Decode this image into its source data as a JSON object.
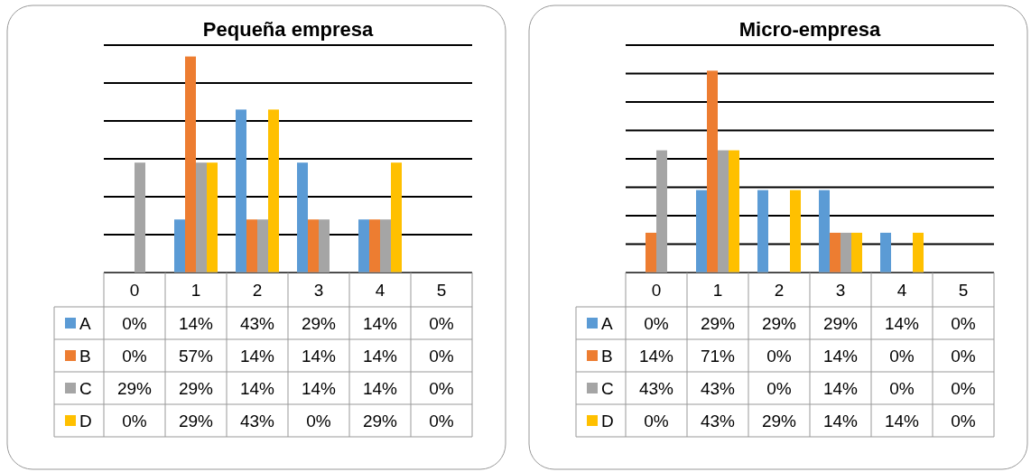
{
  "chart_data": [
    {
      "type": "bar",
      "title": "Pequeña empresa",
      "categories": [
        "0",
        "1",
        "2",
        "3",
        "4",
        "5"
      ],
      "ylim": [
        0,
        60
      ],
      "yticks": [
        {
          "value": 0,
          "label": null
        },
        {
          "value": 10,
          "label": null
        },
        {
          "value": 20,
          "label": null
        },
        {
          "value": 30,
          "label": null
        },
        {
          "value": 40,
          "label": null
        },
        {
          "value": 50,
          "label": null
        },
        {
          "value": 60,
          "label": null
        }
      ],
      "grid": "y",
      "tick_labels": "x",
      "legend": "bottom",
      "series": [
        {
          "name": "A",
          "color": "#5b9bd5",
          "values": [
            0,
            14,
            43,
            29,
            14,
            0
          ],
          "value_labels": [
            "0%",
            "14%",
            "43%",
            "29%",
            "14%",
            "0%"
          ]
        },
        {
          "name": "B",
          "color": "#ed7d31",
          "values": [
            0,
            57,
            14,
            14,
            14,
            0
          ],
          "value_labels": [
            "0%",
            "57%",
            "14%",
            "14%",
            "14%",
            "0%"
          ]
        },
        {
          "name": "C",
          "color": "#a5a5a5",
          "values": [
            29,
            29,
            14,
            14,
            14,
            0
          ],
          "value_labels": [
            "29%",
            "29%",
            "14%",
            "14%",
            "14%",
            "0%"
          ]
        },
        {
          "name": "D",
          "color": "#ffc000",
          "values": [
            0,
            29,
            43,
            0,
            29,
            0
          ],
          "value_labels": [
            "0%",
            "29%",
            "43%",
            "0%",
            "29%",
            "0%"
          ]
        }
      ]
    },
    {
      "type": "bar",
      "title": "Micro-empresa",
      "categories": [
        "0",
        "1",
        "2",
        "3",
        "4",
        "5"
      ],
      "ylim": [
        0,
        80
      ],
      "yticks": [
        {
          "value": 0,
          "label": null
        },
        {
          "value": 10,
          "label": null
        },
        {
          "value": 20,
          "label": null
        },
        {
          "value": 30,
          "label": null
        },
        {
          "value": 40,
          "label": null
        },
        {
          "value": 50,
          "label": null
        },
        {
          "value": 60,
          "label": null
        },
        {
          "value": 70,
          "label": null
        },
        {
          "value": 80,
          "label": null
        }
      ],
      "grid": "y",
      "tick_labels": "x",
      "legend": "bottom",
      "series": [
        {
          "name": "A",
          "color": "#5b9bd5",
          "values": [
            0,
            29,
            29,
            29,
            14,
            0
          ],
          "value_labels": [
            "0%",
            "29%",
            "29%",
            "29%",
            "14%",
            "0%"
          ]
        },
        {
          "name": "B",
          "color": "#ed7d31",
          "values": [
            14,
            71,
            0,
            14,
            0,
            0
          ],
          "value_labels": [
            "14%",
            "71%",
            "0%",
            "14%",
            "0%",
            "0%"
          ]
        },
        {
          "name": "C",
          "color": "#a5a5a5",
          "values": [
            43,
            43,
            0,
            14,
            0,
            0
          ],
          "value_labels": [
            "43%",
            "43%",
            "0%",
            "14%",
            "0%",
            "0%"
          ]
        },
        {
          "name": "D",
          "color": "#ffc000",
          "values": [
            0,
            43,
            29,
            14,
            14,
            0
          ],
          "value_labels": [
            "0%",
            "43%",
            "29%",
            "14%",
            "14%",
            "0%"
          ]
        }
      ]
    }
  ]
}
